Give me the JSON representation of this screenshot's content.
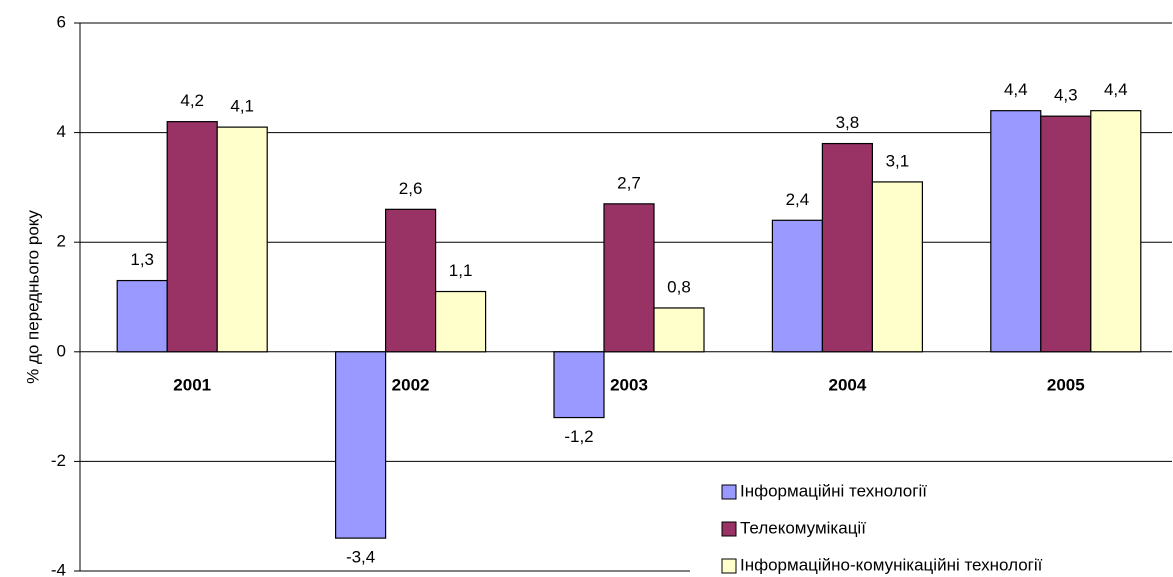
{
  "chart_data": {
    "type": "bar",
    "y_label": "% до переднього року",
    "categories": [
      "2001",
      "2002",
      "2003",
      "2004",
      "2005"
    ],
    "series": [
      {
        "name": "Інформаційні технології",
        "color": "#9999ff",
        "values": [
          1.3,
          -3.4,
          -1.2,
          2.4,
          4.4
        ],
        "value_labels": [
          "1,3",
          "-3,4",
          "-1,2",
          "2,4",
          "4,4"
        ]
      },
      {
        "name": "Телекомумікації",
        "color": "#993366",
        "values": [
          4.2,
          2.6,
          2.7,
          3.8,
          4.3
        ],
        "value_labels": [
          "4,2",
          "2,6",
          "2,7",
          "3,8",
          "4,3"
        ]
      },
      {
        "name": "Інформаційно-комунікаційні технології",
        "color": "#ffffcc",
        "values": [
          4.1,
          1.1,
          0.8,
          3.1,
          4.4
        ],
        "value_labels": [
          "4,1",
          "1,1",
          "0,8",
          "3,1",
          "4,4"
        ]
      }
    ],
    "ylim": [
      -4,
      6
    ],
    "yticks": [
      -4,
      -2,
      0,
      2,
      4,
      6
    ],
    "grid": true,
    "legend": "lower right"
  }
}
